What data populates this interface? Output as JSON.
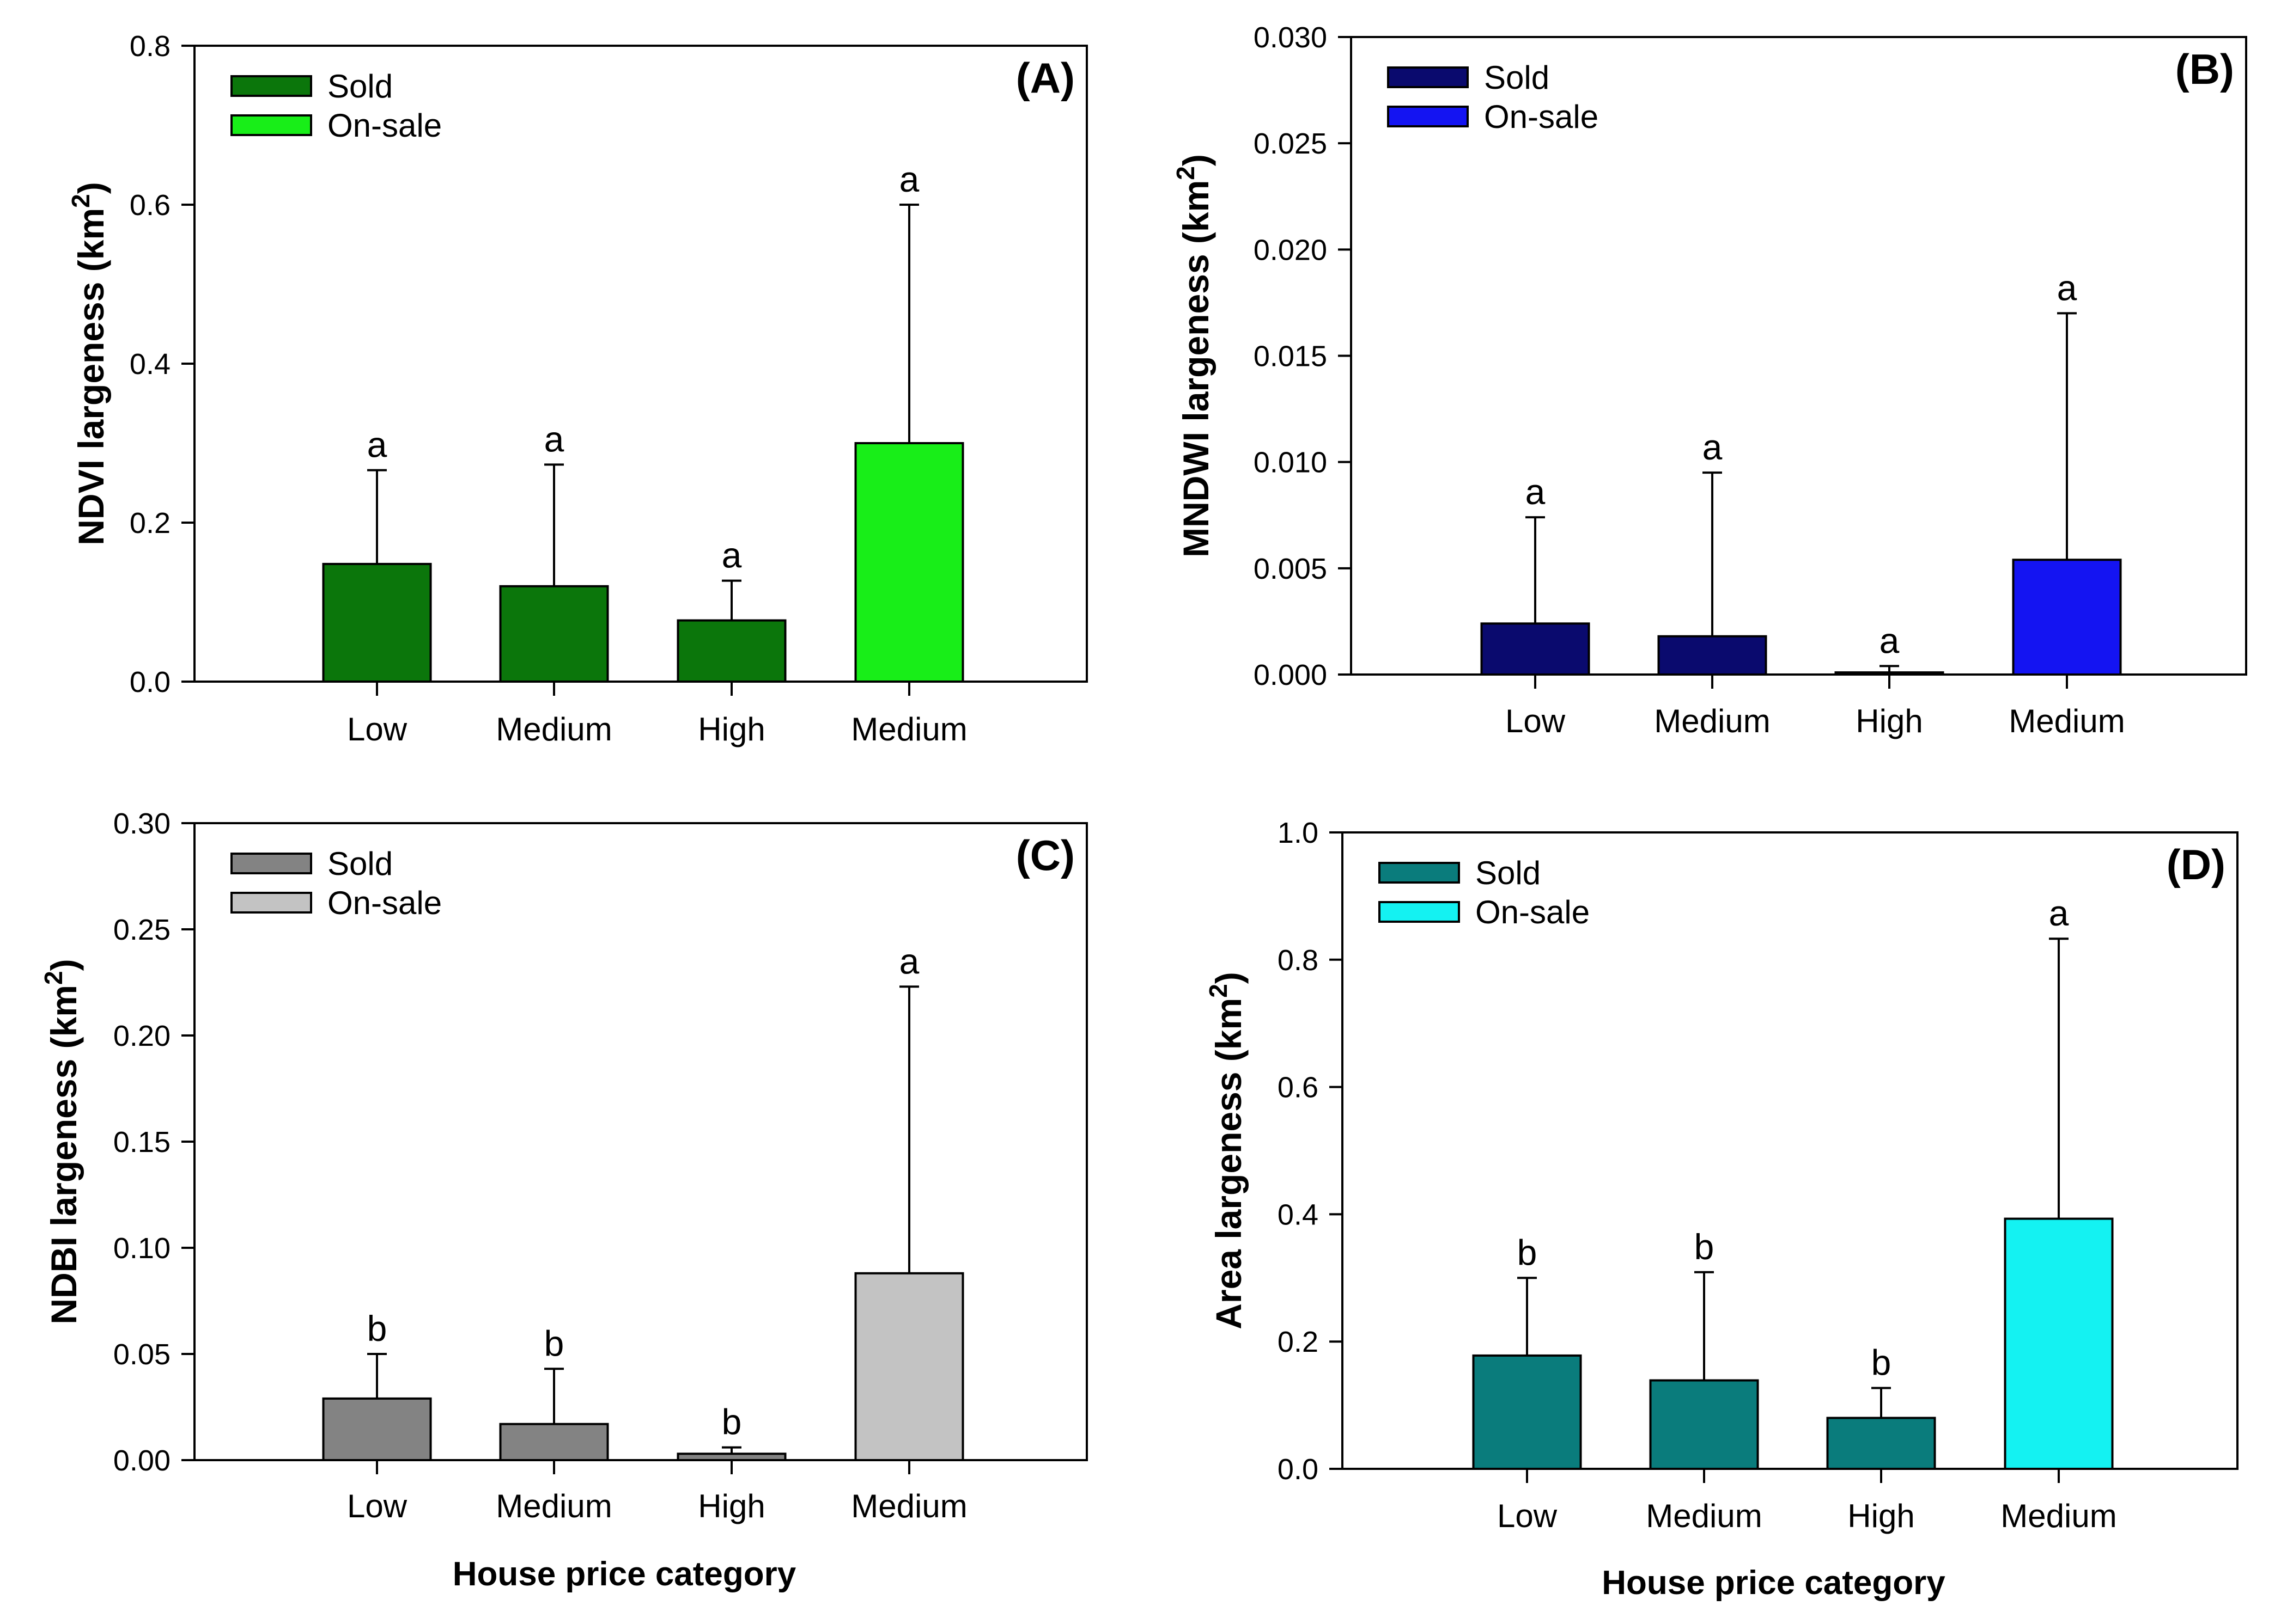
{
  "chart_data": [
    {
      "panel": "(A)",
      "type": "bar",
      "ylabel": "NDVI largeness",
      "yunit": "(km",
      "ysup": "2",
      "yunit_close": ")",
      "xlabel": "",
      "categories": [
        "Low",
        "Medium",
        "High",
        "Medium"
      ],
      "values": [
        0.148,
        0.12,
        0.077,
        0.3
      ],
      "errors": [
        0.118,
        0.153,
        0.05,
        0.3
      ],
      "significance": [
        "a",
        "a",
        "a",
        "a"
      ],
      "bar_series": [
        "Sold",
        "Sold",
        "Sold",
        "On-sale"
      ],
      "legend": [
        {
          "name": "Sold",
          "color": "#0b760b"
        },
        {
          "name": "On-sale",
          "color": "#18ee18"
        }
      ],
      "ylim": [
        0,
        0.8
      ],
      "yticks": [
        "0.0",
        "0.2",
        "0.4",
        "0.6",
        "0.8"
      ],
      "legend_position": "top-left",
      "grid": false
    },
    {
      "panel": "(B)",
      "type": "bar",
      "ylabel": "MNDWI largeness",
      "yunit": "(km",
      "ysup": "2",
      "yunit_close": ")",
      "xlabel": "",
      "categories": [
        "Low",
        "Medium",
        "High",
        "Medium"
      ],
      "values": [
        0.0024,
        0.0018,
        0.0001,
        0.0054
      ],
      "errors": [
        0.005,
        0.0077,
        0.0003,
        0.0116
      ],
      "significance": [
        "a",
        "a",
        "a",
        "a"
      ],
      "bar_series": [
        "Sold",
        "Sold",
        "Sold",
        "On-sale"
      ],
      "legend": [
        {
          "name": "Sold",
          "color": "#0a0a6e"
        },
        {
          "name": "On-sale",
          "color": "#1414f2"
        }
      ],
      "ylim": [
        0,
        0.03
      ],
      "yticks": [
        "0.000",
        "0.005",
        "0.010",
        "0.015",
        "0.020",
        "0.025",
        "0.030"
      ],
      "legend_position": "top-left",
      "grid": false
    },
    {
      "panel": "(C)",
      "type": "bar",
      "ylabel": "NDBI largeness",
      "yunit": "(km",
      "ysup": "2",
      "yunit_close": ")",
      "xlabel": "House price category",
      "categories": [
        "Low",
        "Medium",
        "High",
        "Medium"
      ],
      "values": [
        0.029,
        0.017,
        0.003,
        0.088
      ],
      "errors": [
        0.021,
        0.026,
        0.003,
        0.135
      ],
      "significance": [
        "b",
        "b",
        "b",
        "a"
      ],
      "bar_series": [
        "Sold",
        "Sold",
        "Sold",
        "On-sale"
      ],
      "legend": [
        {
          "name": "Sold",
          "color": "#838383"
        },
        {
          "name": "On-sale",
          "color": "#c3c3c3"
        }
      ],
      "ylim": [
        0,
        0.3
      ],
      "yticks": [
        "0.00",
        "0.05",
        "0.10",
        "0.15",
        "0.20",
        "0.25",
        "0.30"
      ],
      "legend_position": "top-left",
      "grid": false
    },
    {
      "panel": "(D)",
      "type": "bar",
      "ylabel": "Area largeness",
      "yunit": "(km",
      "ysup": "2",
      "yunit_close": ")",
      "xlabel": "House price category",
      "categories": [
        "Low",
        "Medium",
        "High",
        "Medium"
      ],
      "values": [
        0.178,
        0.139,
        0.08,
        0.393
      ],
      "errors": [
        0.122,
        0.17,
        0.047,
        0.44
      ],
      "significance": [
        "b",
        "b",
        "b",
        "a"
      ],
      "bar_series": [
        "Sold",
        "Sold",
        "Sold",
        "On-sale"
      ],
      "legend": [
        {
          "name": "Sold",
          "color": "#0a7c7c"
        },
        {
          "name": "On-sale",
          "color": "#14f2f2"
        }
      ],
      "ylim": [
        0,
        1.0
      ],
      "yticks": [
        "0.0",
        "0.2",
        "0.4",
        "0.6",
        "0.8",
        "1.0"
      ],
      "legend_position": "top-left",
      "grid": false
    }
  ]
}
